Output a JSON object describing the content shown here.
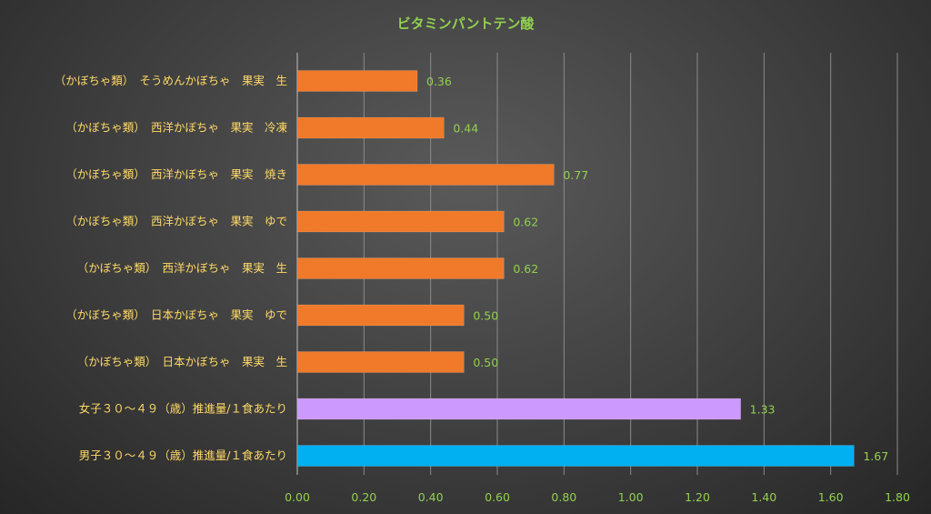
{
  "chart_data": {
    "type": "bar",
    "orientation": "horizontal",
    "title": "ビタミンパントテン酸",
    "xlabel": "",
    "ylabel": "",
    "xlim": [
      0,
      1.8
    ],
    "x_ticks": [
      "0.00",
      "0.20",
      "0.40",
      "0.60",
      "0.80",
      "1.00",
      "1.20",
      "1.40",
      "1.60",
      "1.80"
    ],
    "grid": true,
    "legend": "none",
    "categories": [
      "（かぼちゃ類）　そうめんかぼちゃ　果実　生",
      "（かぼちゃ類）　西洋かぼちゃ　果実　冷凍",
      "（かぼちゃ類）　西洋かぼちゃ　果実　焼き",
      "（かぼちゃ類）　西洋かぼちゃ　果実　ゆで",
      "（かぼちゃ類）　西洋かぼちゃ　果実　生",
      "（かぼちゃ類）　日本かぼちゃ　果実　ゆで",
      "（かぼちゃ類）　日本かぼちゃ　果実　生",
      "女子３０～４９（歳）推進量/１食あたり",
      "男子３０～４９（歳）推進量/１食あたり"
    ],
    "values": [
      0.36,
      0.44,
      0.77,
      0.62,
      0.62,
      0.5,
      0.5,
      1.33,
      1.67
    ],
    "data_labels": [
      "0.36",
      "0.44",
      "0.77",
      "0.62",
      "0.62",
      "0.50",
      "0.50",
      "1.33",
      "1.67"
    ],
    "bar_colors": [
      "#f07a2a",
      "#f07a2a",
      "#f07a2a",
      "#f07a2a",
      "#f07a2a",
      "#f07a2a",
      "#f07a2a",
      "#cc99ff",
      "#00b0f0"
    ],
    "colors": {
      "title": "#92d050",
      "category_label": "#ffd966",
      "tick_label": "#92d050",
      "data_label": "#92d050",
      "gridline": "#8a8a8a"
    }
  }
}
